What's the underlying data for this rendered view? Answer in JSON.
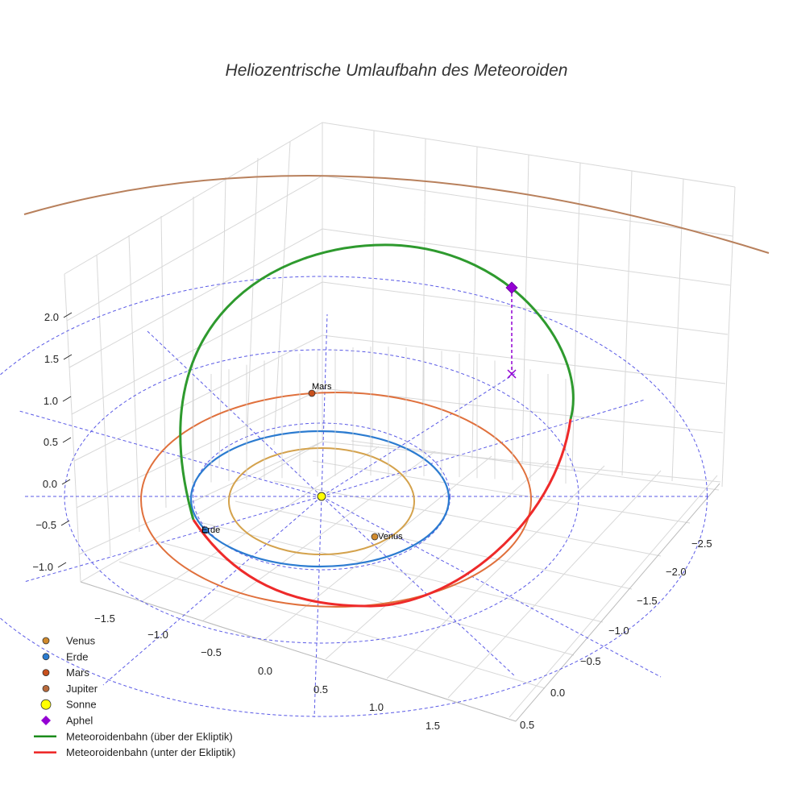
{
  "chart_data": {
    "type": "scatter3d",
    "title": "Heliozentrische Umlaufbahn des Meteoroiden",
    "axes": {
      "x": {
        "label": "",
        "ticks": [
          "−1.5",
          "−1.0",
          "−0.5",
          "0.0",
          "0.5",
          "1.0",
          "1.5"
        ]
      },
      "y": {
        "label": "",
        "ticks": [
          "−2.5",
          "−2.0",
          "−1.5",
          "−1.0",
          "−0.5",
          "0.0",
          "0.5"
        ]
      },
      "z": {
        "label": "",
        "ticks": [
          "−1.0",
          "−0.5",
          "0.0",
          "0.5",
          "1.0",
          "1.5",
          "2.0"
        ]
      }
    },
    "reference_grid": {
      "style": "dashed",
      "color": "#5a5ae6",
      "circle_radii_au": [
        1,
        2,
        3
      ],
      "radial_lines": 12
    },
    "orbits": [
      {
        "name": "Venus",
        "semi_major_au": 0.72,
        "color": "#d4a24c"
      },
      {
        "name": "Erde",
        "semi_major_au": 1.0,
        "color": "#2b7bd0"
      },
      {
        "name": "Mars",
        "semi_major_au": 1.52,
        "color": "#e0703c"
      },
      {
        "name": "Jupiter",
        "semi_major_au": 5.2,
        "color": "#b8805c"
      }
    ],
    "meteoroid_orbit": {
      "above_ecliptic": {
        "name": "Meteoroidenbahn (über der Ekliptik)",
        "color": "#2e9a2e"
      },
      "below_ecliptic": {
        "name": "Meteoroidenbahn (unter der Ekliptik)",
        "color": "#ee2a2a"
      }
    },
    "point_labels": [
      "Mars",
      "Erde",
      "Venus"
    ],
    "legend": [
      {
        "name": "Venus",
        "symbol": "circle",
        "color": "#d08a2c"
      },
      {
        "name": "Erde",
        "symbol": "circle",
        "color": "#2b7bd0"
      },
      {
        "name": "Mars",
        "symbol": "circle",
        "color": "#c8501c"
      },
      {
        "name": "Jupiter",
        "symbol": "circle",
        "color": "#b86a3c"
      },
      {
        "name": "Sonne",
        "symbol": "circle-large",
        "color": "#ffff00"
      },
      {
        "name": "Aphel",
        "symbol": "diamond",
        "color": "#9400d3"
      },
      {
        "name": "Meteoroidenbahn (über der Ekliptik)",
        "symbol": "line",
        "color": "#1c8c1c"
      },
      {
        "name": "Meteoroidenbahn (unter der Ekliptik)",
        "symbol": "line",
        "color": "#ee2222"
      }
    ]
  }
}
